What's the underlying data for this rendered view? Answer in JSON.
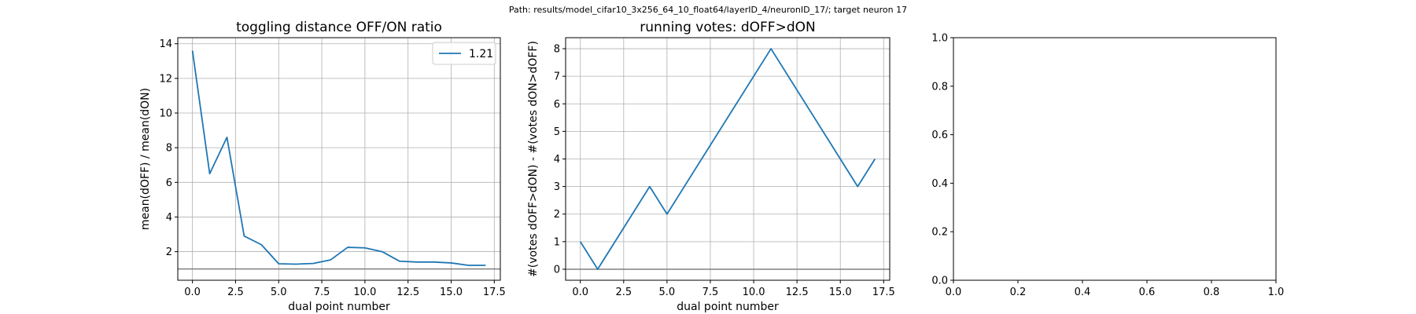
{
  "figure": {
    "suptitle": "Path: results/model_cifar10_3x256_64_10_float64/layerID_4/neuronID_17/; target neuron 17"
  },
  "chart_data": [
    {
      "type": "line",
      "title": "toggling distance OFF/ON ratio",
      "xlabel": "dual point number",
      "ylabel": "mean(dOFF) / mean(dON)",
      "xlim": [
        -0.85,
        17.85
      ],
      "ylim": [
        0.35,
        14.35
      ],
      "xticks": [
        0.0,
        2.5,
        5.0,
        7.5,
        10.0,
        12.5,
        15.0,
        17.5
      ],
      "xtick_labels": [
        "0.0",
        "2.5",
        "5.0",
        "7.5",
        "10.0",
        "12.5",
        "15.0",
        "17.5"
      ],
      "yticks": [
        2,
        4,
        6,
        8,
        10,
        12,
        14
      ],
      "ytick_labels": [
        "2",
        "4",
        "6",
        "8",
        "10",
        "12",
        "14"
      ],
      "grid": true,
      "legend": "top-right",
      "hline": {
        "y": 1.0,
        "color": "#808080"
      },
      "series": [
        {
          "name": "1.21",
          "color": "#1f77b4",
          "x": [
            0,
            1,
            2,
            3,
            4,
            5,
            6,
            7,
            8,
            9,
            10,
            11,
            12,
            13,
            14,
            15,
            16,
            17
          ],
          "y": [
            13.6,
            6.5,
            8.6,
            2.9,
            2.4,
            1.3,
            1.28,
            1.32,
            1.52,
            2.25,
            2.22,
            2.0,
            1.45,
            1.4,
            1.4,
            1.35,
            1.21,
            1.21
          ]
        }
      ]
    },
    {
      "type": "line",
      "title": "running votes: dOFF>dON",
      "xlabel": "dual point number",
      "ylabel": "#(votes dOFF>dON) - #(votes dON>dOFF)",
      "xlim": [
        -0.85,
        17.85
      ],
      "ylim": [
        -0.4,
        8.4
      ],
      "xticks": [
        0.0,
        2.5,
        5.0,
        7.5,
        10.0,
        12.5,
        15.0,
        17.5
      ],
      "xtick_labels": [
        "0.0",
        "2.5",
        "5.0",
        "7.5",
        "10.0",
        "12.5",
        "15.0",
        "17.5"
      ],
      "yticks": [
        0,
        1,
        2,
        3,
        4,
        5,
        6,
        7,
        8
      ],
      "ytick_labels": [
        "0",
        "1",
        "2",
        "3",
        "4",
        "5",
        "6",
        "7",
        "8"
      ],
      "grid": true,
      "hline": {
        "y": 0,
        "color": "#808080"
      },
      "series": [
        {
          "color": "#1f77b4",
          "x": [
            0,
            1,
            4,
            5,
            11,
            16,
            17
          ],
          "y": [
            1,
            0,
            3,
            2,
            8,
            3,
            4
          ]
        }
      ]
    },
    {
      "type": "line",
      "title": "",
      "xlabel": "",
      "ylabel": "",
      "xlim": [
        0,
        1
      ],
      "ylim": [
        0,
        1
      ],
      "xticks": [
        0.0,
        0.2,
        0.4,
        0.6,
        0.8,
        1.0
      ],
      "xtick_labels": [
        "0.0",
        "0.2",
        "0.4",
        "0.6",
        "0.8",
        "1.0"
      ],
      "yticks": [
        0.0,
        0.2,
        0.4,
        0.6,
        0.8,
        1.0
      ],
      "ytick_labels": [
        "0.0",
        "0.2",
        "0.4",
        "0.6",
        "0.8",
        "1.0"
      ],
      "grid": false,
      "series": []
    }
  ]
}
